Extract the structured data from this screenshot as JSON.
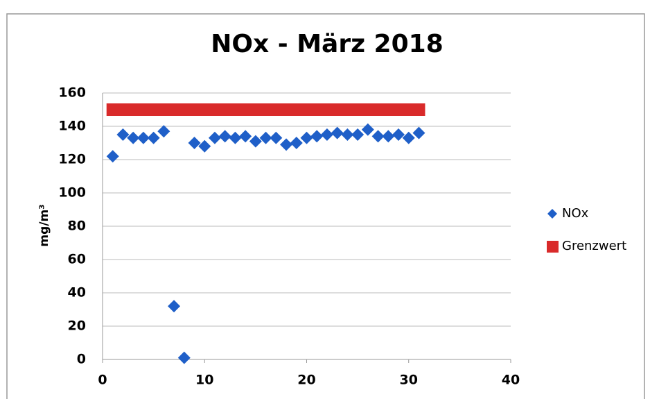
{
  "chart_data": {
    "type": "scatter",
    "title": "NOx -  März 2018",
    "ylabel": "mg/m³",
    "xlim": [
      0,
      40
    ],
    "xticks": [
      0,
      10,
      20,
      30,
      40
    ],
    "ylim": [
      0,
      160
    ],
    "yticks": [
      0,
      20,
      40,
      60,
      80,
      100,
      120,
      140,
      160
    ],
    "grid": true,
    "legend": "right",
    "series": [
      {
        "name": "NOx",
        "type": "scatter",
        "color": "#1f5fc8",
        "x": [
          1,
          2,
          3,
          4,
          5,
          6,
          7,
          8,
          9,
          10,
          11,
          12,
          13,
          14,
          15,
          16,
          17,
          18,
          19,
          20,
          21,
          22,
          23,
          24,
          25,
          26,
          27,
          28,
          29,
          30,
          31
        ],
        "values": [
          122,
          135,
          133,
          133,
          133,
          137,
          32,
          1,
          130,
          128,
          133,
          134,
          133,
          134,
          131,
          133,
          133,
          129,
          130,
          133,
          134,
          135,
          136,
          135,
          135,
          138,
          134,
          134,
          135,
          133,
          136
        ]
      },
      {
        "name": "Grenzwert",
        "type": "line",
        "color": "#d92a2a",
        "x": [
          1,
          31
        ],
        "values": [
          150,
          150
        ]
      }
    ]
  }
}
